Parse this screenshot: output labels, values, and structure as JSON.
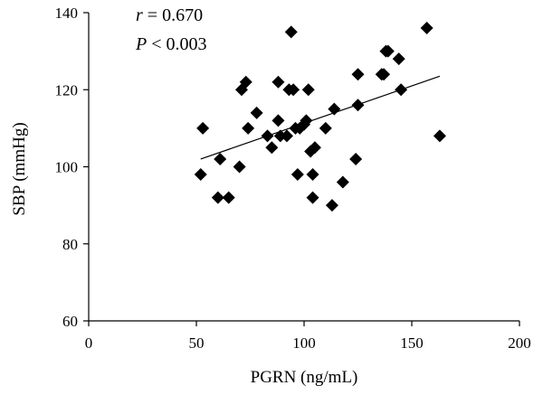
{
  "chart_data": {
    "type": "scatter",
    "xlabel": "PGRN (ng/mL)",
    "ylabel": "SBP (mmHg)",
    "xlim": [
      0,
      200
    ],
    "ylim": [
      60,
      140
    ],
    "xticks": [
      0,
      50,
      100,
      150,
      200
    ],
    "yticks": [
      60,
      80,
      100,
      120,
      140
    ],
    "grid": false,
    "marker": "diamond",
    "color": "#000000",
    "annotations": {
      "r_symbol": "r",
      "r_text": " = 0.670",
      "p_symbol": "P",
      "p_text": " < 0.003"
    },
    "trendline": {
      "x": [
        52,
        163
      ],
      "y": [
        102,
        123.5
      ]
    },
    "points": [
      {
        "x": 52,
        "y": 98
      },
      {
        "x": 53,
        "y": 110
      },
      {
        "x": 60,
        "y": 92
      },
      {
        "x": 61,
        "y": 102
      },
      {
        "x": 65,
        "y": 92
      },
      {
        "x": 70,
        "y": 100
      },
      {
        "x": 71,
        "y": 120
      },
      {
        "x": 73,
        "y": 122
      },
      {
        "x": 74,
        "y": 110
      },
      {
        "x": 78,
        "y": 114
      },
      {
        "x": 83,
        "y": 108
      },
      {
        "x": 85,
        "y": 105
      },
      {
        "x": 88,
        "y": 122
      },
      {
        "x": 88,
        "y": 112
      },
      {
        "x": 89,
        "y": 108
      },
      {
        "x": 92,
        "y": 108
      },
      {
        "x": 93,
        "y": 120
      },
      {
        "x": 94,
        "y": 135
      },
      {
        "x": 95,
        "y": 120
      },
      {
        "x": 96,
        "y": 110
      },
      {
        "x": 97,
        "y": 98
      },
      {
        "x": 98,
        "y": 110
      },
      {
        "x": 100,
        "y": 111
      },
      {
        "x": 101,
        "y": 112
      },
      {
        "x": 102,
        "y": 120
      },
      {
        "x": 103,
        "y": 104
      },
      {
        "x": 104,
        "y": 92
      },
      {
        "x": 104,
        "y": 98
      },
      {
        "x": 105,
        "y": 105
      },
      {
        "x": 110,
        "y": 110
      },
      {
        "x": 113,
        "y": 90
      },
      {
        "x": 114,
        "y": 115
      },
      {
        "x": 118,
        "y": 96
      },
      {
        "x": 124,
        "y": 102
      },
      {
        "x": 125,
        "y": 124
      },
      {
        "x": 125,
        "y": 116
      },
      {
        "x": 136,
        "y": 124
      },
      {
        "x": 137,
        "y": 124
      },
      {
        "x": 138,
        "y": 130
      },
      {
        "x": 139,
        "y": 130
      },
      {
        "x": 144,
        "y": 128
      },
      {
        "x": 145,
        "y": 120
      },
      {
        "x": 157,
        "y": 136
      },
      {
        "x": 163,
        "y": 108
      }
    ]
  }
}
